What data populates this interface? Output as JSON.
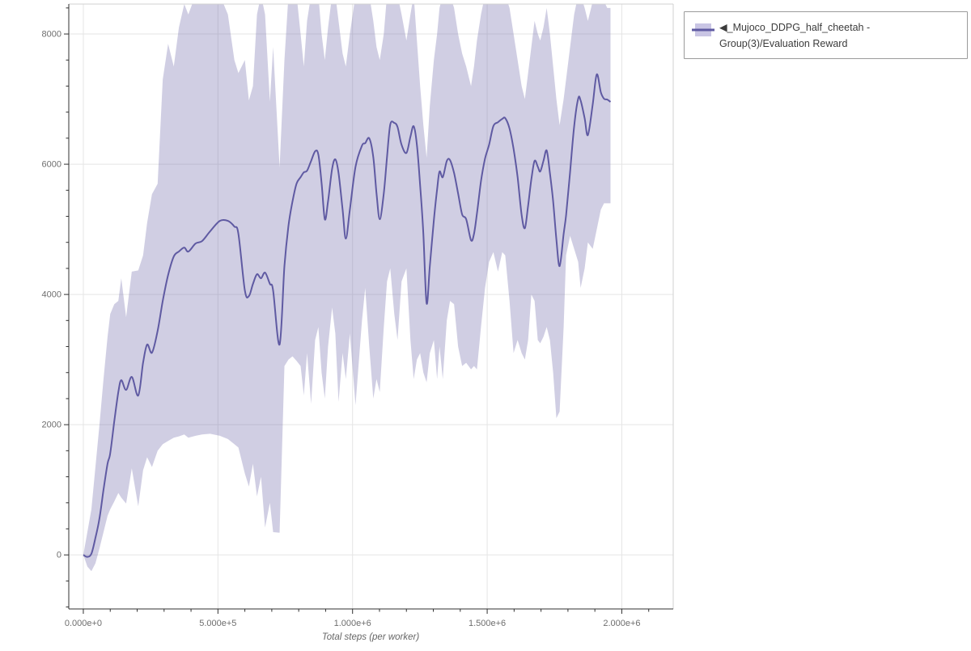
{
  "page": {
    "background": "#ffffff"
  },
  "colors": {
    "grid": "#e5e5e5",
    "plot_border": "#d2d2d2",
    "axis": "#303030",
    "tick_label": "#6e6e6e",
    "axis_title": "#666666",
    "legend_border": "#9b9b9b",
    "legend_text": "#3c3c3c"
  },
  "chart_data": {
    "type": "line",
    "title": "",
    "xlabel": "Total steps (per worker)",
    "ylabel": "",
    "grid": true,
    "x_axis": {
      "range": [
        -54000,
        2191000
      ],
      "tick_values": [
        0,
        500000,
        1000000,
        1500000,
        2000000
      ],
      "tick_labels": [
        "0.000e+0",
        "5.000e+5",
        "1.000e+6",
        "1.500e+6",
        "2.000e+6"
      ],
      "minor_tick_step": 100000
    },
    "y_axis": {
      "range": [
        -830,
        8460
      ],
      "tick_values": [
        0,
        2000,
        4000,
        6000,
        8000
      ],
      "tick_labels": [
        "0",
        "2000",
        "4000",
        "6000",
        "8000"
      ],
      "minor_tick_step": 400
    },
    "legend": {
      "position": "top-right-outside",
      "label": "◀_Mujoco_DDPG_half_cheetah - Group(3)/Evaluation Reward"
    },
    "series": [
      {
        "name": "Mujoco_DDPG_half_cheetah - Group(3)/Evaluation Reward",
        "line_color": "#5f5aa2",
        "band_color": "rgba(111,106,171,0.33)",
        "band_swatch_color": "#c9c5e4",
        "x": [
          0,
          15000,
          30000,
          45000,
          60000,
          75000,
          90000,
          100000,
          115000,
          130000,
          141000,
          159000,
          180000,
          204000,
          222000,
          237000,
          255000,
          276000,
          295000,
          315000,
          336000,
          355000,
          375000,
          390000,
          417000,
          441000,
          471000,
          507000,
          537000,
          561000,
          576000,
          600000,
          615000,
          630000,
          645000,
          660000,
          675000,
          693000,
          705000,
          729000,
          747000,
          762000,
          777000,
          792000,
          807000,
          819000,
          831000,
          846000,
          861000,
          873000,
          885000,
          897000,
          909000,
          924000,
          936000,
          948000,
          963000,
          975000,
          990000,
          1011000,
          1035000,
          1047000,
          1062000,
          1077000,
          1089000,
          1101000,
          1116000,
          1128000,
          1140000,
          1155000,
          1167000,
          1182000,
          1200000,
          1215000,
          1227000,
          1239000,
          1251000,
          1263000,
          1275000,
          1287000,
          1302000,
          1314000,
          1323000,
          1335000,
          1350000,
          1362000,
          1377000,
          1392000,
          1407000,
          1422000,
          1440000,
          1451000,
          1462000,
          1477000,
          1492000,
          1507000,
          1523000,
          1540000,
          1556000,
          1567000,
          1583000,
          1598000,
          1613000,
          1628000,
          1640000,
          1652000,
          1664000,
          1676000,
          1688000,
          1697000,
          1709000,
          1721000,
          1733000,
          1745000,
          1757000,
          1769000,
          1784000,
          1793000,
          1808000,
          1823000,
          1838000,
          1847000,
          1862000,
          1874000,
          1892000,
          1907000,
          1922000,
          1934000,
          1946000,
          1958000
        ],
        "mean": [
          0,
          -30,
          20,
          260,
          560,
          1000,
          1400,
          1560,
          2050,
          2500,
          2683,
          2534,
          2733,
          2447,
          2950,
          3230,
          3106,
          3441,
          3900,
          4300,
          4584,
          4660,
          4720,
          4658,
          4783,
          4820,
          4970,
          5130,
          5130,
          5043,
          4932,
          4062,
          3975,
          4162,
          4311,
          4249,
          4335,
          4162,
          4062,
          3230,
          4435,
          5056,
          5429,
          5702,
          5801,
          5876,
          5901,
          6050,
          6199,
          6149,
          5714,
          5155,
          5429,
          5926,
          6075,
          5864,
          5304,
          4857,
          5304,
          5963,
          6286,
          6323,
          6398,
          6112,
          5553,
          5155,
          5553,
          6112,
          6609,
          6634,
          6571,
          6298,
          6174,
          6422,
          6584,
          6298,
          5677,
          4932,
          3863,
          4435,
          5143,
          5615,
          5888,
          5801,
          6050,
          6062,
          5864,
          5553,
          5230,
          5155,
          4833,
          4932,
          5242,
          5739,
          6087,
          6298,
          6584,
          6646,
          6696,
          6708,
          6547,
          6236,
          5801,
          5217,
          5019,
          5366,
          5764,
          6050,
          5963,
          5888,
          6050,
          6211,
          5864,
          5429,
          4845,
          4435,
          4932,
          5217,
          5888,
          6584,
          7006,
          6981,
          6708,
          6447,
          6919,
          7379,
          7106,
          7006,
          6993,
          6957
        ],
        "lower": [
          0,
          -180,
          -250,
          -130,
          100,
          350,
          600,
          700,
          820,
          950,
          880,
          790,
          1330,
          745,
          1300,
          1500,
          1350,
          1600,
          1700,
          1750,
          1800,
          1820,
          1850,
          1800,
          1830,
          1850,
          1860,
          1830,
          1780,
          1700,
          1650,
          1250,
          1050,
          1400,
          900,
          1200,
          420,
          800,
          350,
          340,
          2900,
          3000,
          3050,
          2980,
          2900,
          2450,
          3100,
          2320,
          3300,
          3500,
          2800,
          2400,
          3200,
          3800,
          3400,
          2350,
          3100,
          2700,
          3400,
          2300,
          3600,
          4100,
          3200,
          2400,
          2700,
          2500,
          3500,
          4200,
          4400,
          3700,
          3300,
          4200,
          4400,
          3300,
          2700,
          3000,
          3100,
          2800,
          2650,
          3100,
          3300,
          2700,
          3200,
          2700,
          3600,
          3900,
          3850,
          3200,
          2900,
          2950,
          2850,
          2900,
          2850,
          3500,
          4100,
          4500,
          4650,
          4350,
          4650,
          4600,
          3900,
          3100,
          3300,
          3100,
          3000,
          3300,
          4000,
          3900,
          3300,
          3250,
          3350,
          3500,
          3300,
          2800,
          2100,
          2200,
          3500,
          4600,
          4900,
          4700,
          4500,
          4100,
          4400,
          4800,
          4700,
          5000,
          5300,
          5400,
          5400,
          5400
        ],
        "upper": [
          0,
          350,
          700,
          1350,
          2000,
          2700,
          3350,
          3700,
          3850,
          3900,
          4250,
          3650,
          4350,
          4370,
          4600,
          5100,
          5540,
          5700,
          7300,
          7850,
          7500,
          8100,
          8460,
          8300,
          8600,
          8600,
          8600,
          8600,
          8300,
          7600,
          7400,
          7600,
          6980,
          7200,
          8300,
          8600,
          8300,
          6960,
          7800,
          5950,
          7600,
          8600,
          8600,
          8600,
          8000,
          7500,
          8200,
          8600,
          8600,
          8600,
          8000,
          7600,
          8100,
          8600,
          8600,
          8200,
          7700,
          7500,
          8000,
          8600,
          8600,
          8600,
          8600,
          8200,
          7800,
          7600,
          8000,
          8600,
          8600,
          8600,
          8600,
          8300,
          7900,
          8300,
          8600,
          7900,
          7200,
          6600,
          6100,
          6900,
          7600,
          8000,
          8400,
          8600,
          8600,
          8600,
          8400,
          8000,
          7700,
          7500,
          7200,
          7500,
          7900,
          8300,
          8600,
          8600,
          8600,
          8600,
          8600,
          8600,
          8400,
          8000,
          7600,
          7200,
          7000,
          7400,
          7800,
          8200,
          8000,
          7900,
          8100,
          8400,
          8000,
          7500,
          7000,
          6600,
          7000,
          7300,
          7800,
          8300,
          8600,
          8600,
          8400,
          8200,
          8500,
          8600,
          8600,
          8500,
          8400,
          8400
        ]
      }
    ]
  }
}
